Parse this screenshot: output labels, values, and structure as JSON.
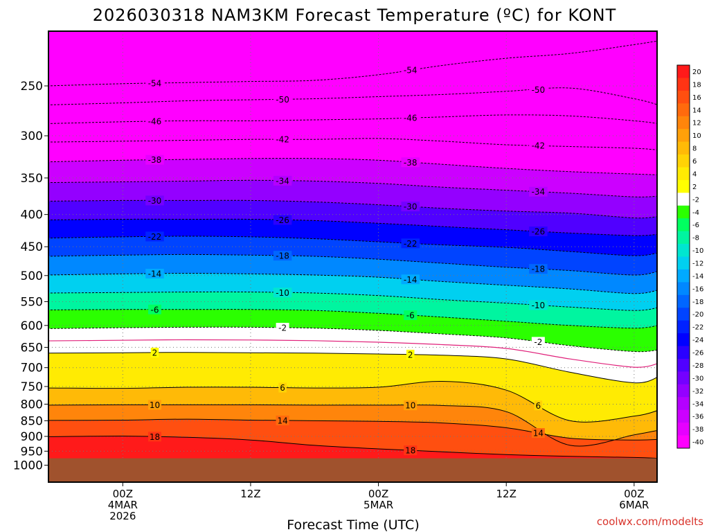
{
  "title": "2026030318 NAM3KM Forecast Temperature (ºC) for KONT",
  "credit": "coolwx.com/modelts",
  "chart_data": {
    "type": "heatmap",
    "title": "2026030318 NAM3KM Forecast Temperature (ºC) for KONT",
    "xlabel": "Forecast Time (UTC)",
    "ylabel": "",
    "y_scale": "log",
    "y_reversed": true,
    "ylim": [
      1000,
      200
    ],
    "y_ticks": [
      250,
      300,
      350,
      400,
      450,
      500,
      550,
      600,
      650,
      700,
      750,
      800,
      850,
      900,
      950,
      1000
    ],
    "xlim": [
      "2026-03-03T18:00Z",
      "2026-03-06T03:00Z"
    ],
    "x_ticks": [
      {
        "time": "2026-03-04T00:00Z",
        "label": "00Z",
        "label2": "4MAR",
        "label3": "2026"
      },
      {
        "time": "2026-03-04T12:00Z",
        "label": "12Z",
        "label2": "",
        "label3": ""
      },
      {
        "time": "2026-03-05T00:00Z",
        "label": "00Z",
        "label2": "5MAR",
        "label3": ""
      },
      {
        "time": "2026-03-05T12:00Z",
        "label": "12Z",
        "label2": "",
        "label3": ""
      },
      {
        "time": "2026-03-06T00:00Z",
        "label": "00Z",
        "label2": "6MAR",
        "label3": ""
      }
    ],
    "grid": true,
    "surface_pressure": 975,
    "surface_color": "#a0522d",
    "colorbar": {
      "levels": [
        "20",
        "18",
        "16",
        "14",
        "12",
        "10",
        "8",
        "6",
        "4",
        "2",
        "-2",
        "-4",
        "-6",
        "-8",
        "-10",
        "-12",
        "-14",
        "-16",
        "-18",
        "-20",
        "-22",
        "-24",
        "-26",
        "-28",
        "-30",
        "-32",
        "-34",
        "-36",
        "-38",
        "-40"
      ],
      "colors": [
        "#ff1a1a",
        "#ff3414",
        "#ff4f10",
        "#ff6a0d",
        "#ff850b",
        "#ffa009",
        "#ffba07",
        "#ffd305",
        "#ffeb03",
        "#ffff00",
        "#ffffff",
        "#2bff00",
        "#00ff60",
        "#00f5a0",
        "#00e6d0",
        "#00d0f0",
        "#00aaff",
        "#0088ff",
        "#0066ff",
        "#0044ff",
        "#0022ff",
        "#0000ff",
        "#2a00ff",
        "#5000ff",
        "#7400ff",
        "#9400ff",
        "#b400ff",
        "#cc00ff",
        "#e600ff",
        "#ff00ff"
      ]
    },
    "times": [
      "2026-03-03T18:00Z",
      "2026-03-04T00:00Z",
      "2026-03-04T06:00Z",
      "2026-03-04T12:00Z",
      "2026-03-04T18:00Z",
      "2026-03-05T00:00Z",
      "2026-03-05T06:00Z",
      "2026-03-05T12:00Z",
      "2026-03-05T18:00Z",
      "2026-03-06T00:00Z",
      "2026-03-06T03:00Z"
    ],
    "isotherms": [
      {
        "value": -54,
        "pressure": [
          250,
          248,
          247,
          246,
          245,
          240,
          232,
          226,
          222,
          215,
          212
        ]
      },
      {
        "value": -50,
        "pressure": [
          268,
          266,
          264,
          263,
          262,
          260,
          258,
          255,
          252,
          262,
          268
        ]
      },
      {
        "value": -46,
        "pressure": [
          287,
          285,
          284,
          284,
          283,
          282,
          280,
          278,
          279,
          284,
          287
        ]
      },
      {
        "value": -42,
        "pressure": [
          307,
          306,
          305,
          304,
          304,
          303,
          306,
          310,
          312,
          314,
          316
        ]
      },
      {
        "value": -38,
        "pressure": [
          330,
          328,
          327,
          326,
          326,
          328,
          333,
          338,
          342,
          345,
          346
        ]
      },
      {
        "value": -34,
        "pressure": [
          356,
          355,
          354,
          353,
          354,
          357,
          362,
          366,
          370,
          375,
          374
        ]
      },
      {
        "value": -30,
        "pressure": [
          381,
          380,
          380,
          380,
          382,
          386,
          391,
          395,
          398,
          405,
          403
        ]
      },
      {
        "value": -26,
        "pressure": [
          408,
          407,
          407,
          407,
          409,
          413,
          418,
          423,
          428,
          432,
          430
        ]
      },
      {
        "value": -22,
        "pressure": [
          436,
          434,
          433,
          434,
          437,
          442,
          447,
          451,
          458,
          465,
          460
        ]
      },
      {
        "value": -18,
        "pressure": [
          466,
          464,
          463,
          464,
          466,
          471,
          478,
          485,
          491,
          499,
          492
        ]
      },
      {
        "value": -14,
        "pressure": [
          499,
          497,
          496,
          497,
          499,
          503,
          511,
          518,
          525,
          534,
          527
        ]
      },
      {
        "value": -10,
        "pressure": [
          533,
          532,
          531,
          531,
          533,
          538,
          546,
          553,
          561,
          568,
          562
        ]
      },
      {
        "value": -6,
        "pressure": [
          567,
          566,
          566,
          566,
          568,
          574,
          582,
          591,
          600,
          606,
          600
        ]
      },
      {
        "value": -2,
        "pressure": [
          607,
          605,
          604,
          604,
          606,
          611,
          619,
          628,
          646,
          660,
          656
        ]
      },
      {
        "value": 2,
        "pressure": [
          664,
          663,
          662,
          663,
          664,
          666,
          669,
          678,
          712,
          740,
          724
        ]
      },
      {
        "value": 6,
        "pressure": [
          754,
          755,
          752,
          752,
          754,
          752,
          736,
          760,
          850,
          836,
          818
        ]
      },
      {
        "value": 10,
        "pressure": [
          803,
          802,
          802,
          802,
          803,
          803,
          804,
          822,
          930,
          895,
          880
        ]
      },
      {
        "value": 14,
        "pressure": [
          849,
          848,
          845,
          848,
          850,
          852,
          857,
          872,
          906,
          912,
          910
        ]
      },
      {
        "value": 18,
        "pressure": [
          901,
          899,
          903,
          912,
          930,
          942,
          952,
          962,
          968,
          972,
          975
        ]
      }
    ]
  }
}
